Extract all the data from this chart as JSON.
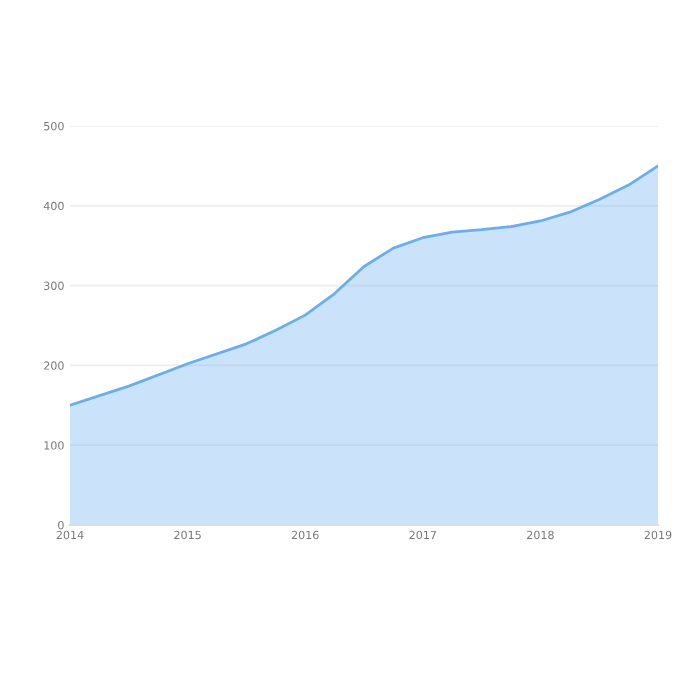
{
  "chart_data": {
    "type": "area",
    "x": [
      2014,
      2014.5,
      2015,
      2015.5,
      2015.75,
      2016,
      2016.25,
      2016.5,
      2016.75,
      2017,
      2017.25,
      2017.5,
      2017.75,
      2018,
      2018.25,
      2018.5,
      2018.75,
      2019
    ],
    "series": [
      {
        "color": "#6aaef0",
        "values": [
          150,
          174,
          202,
          227,
          244,
          263,
          290,
          324,
          347,
          360,
          367,
          370,
          374,
          381,
          392,
          408,
          426,
          450
        ]
      }
    ],
    "xlim": [
      2014,
      2019
    ],
    "xticks": [
      2014,
      2015,
      2016,
      2017,
      2018,
      2019
    ],
    "ylim": [
      0,
      500
    ],
    "yticks": [
      0,
      100,
      200,
      300,
      400,
      500
    ],
    "grid": "y",
    "legend": false
  }
}
